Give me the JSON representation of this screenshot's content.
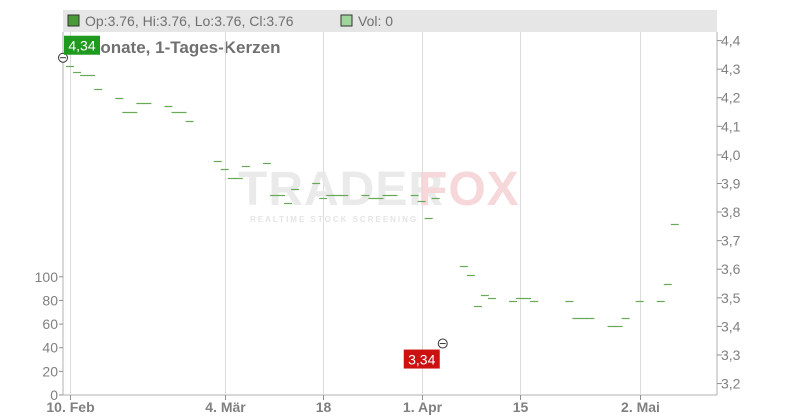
{
  "legend": {
    "ohlc_label": "Op:3.76, Hi:3.76, Lo:3.76, Cl:3.76",
    "vol_label": "Vol: 0"
  },
  "watermark": {
    "brand_a": "TRADER",
    "brand_b": "FOX",
    "tagline": "REALTIME STOCK SCREENING"
  },
  "chart_data": {
    "type": "line",
    "title": "3 Monate, 1-Tages-Kerzen",
    "price_axis": {
      "ticks": [
        "4,4",
        "4,3",
        "4,2",
        "4,1",
        "4,0",
        "3,9",
        "3,8",
        "3,7",
        "3,6",
        "3,5",
        "3,4",
        "3,3",
        "3,2"
      ],
      "range": [
        3.16,
        4.43
      ]
    },
    "volume_axis": {
      "ticks": [
        "100",
        "80",
        "60",
        "40",
        "20",
        "0"
      ],
      "range": [
        0,
        110
      ]
    },
    "x_ticks": [
      "10. Feb",
      "4. Mär",
      "18",
      "1. Apr",
      "15",
      "2. Mai"
    ],
    "x_tick_dates": [
      "2025-02-10",
      "2025-03-04",
      "2025-03-18",
      "2025-04-01",
      "2025-04-15",
      "2025-05-02"
    ],
    "x_range": [
      "2025-02-09",
      "2025-05-13"
    ],
    "series": [
      {
        "values": [
          [
            "2025-02-10",
            4.31
          ],
          [
            "2025-02-11",
            4.29
          ],
          [
            "2025-02-12",
            4.28
          ],
          [
            "2025-02-13",
            4.28
          ],
          [
            "2025-02-14",
            4.23
          ],
          [
            "2025-02-17",
            4.2
          ],
          [
            "2025-02-18",
            4.15
          ],
          [
            "2025-02-19",
            4.15
          ],
          [
            "2025-02-20",
            4.18
          ],
          [
            "2025-02-21",
            4.18
          ],
          [
            "2025-02-24",
            4.17
          ],
          [
            "2025-02-25",
            4.15
          ],
          [
            "2025-02-26",
            4.15
          ],
          [
            "2025-02-27",
            4.12
          ],
          [
            "2025-03-03",
            3.98
          ],
          [
            "2025-03-04",
            3.95
          ],
          [
            "2025-03-05",
            3.92
          ],
          [
            "2025-03-06",
            3.92
          ],
          [
            "2025-03-07",
            3.96
          ],
          [
            "2025-03-10",
            3.97
          ],
          [
            "2025-03-11",
            3.86
          ],
          [
            "2025-03-12",
            3.86
          ],
          [
            "2025-03-13",
            3.83
          ],
          [
            "2025-03-14",
            3.88
          ],
          [
            "2025-03-17",
            3.9
          ],
          [
            "2025-03-18",
            3.85
          ],
          [
            "2025-03-19",
            3.86
          ],
          [
            "2025-03-20",
            3.86
          ],
          [
            "2025-03-21",
            3.86
          ],
          [
            "2025-03-24",
            3.86
          ],
          [
            "2025-03-25",
            3.85
          ],
          [
            "2025-03-26",
            3.85
          ],
          [
            "2025-03-27",
            3.86
          ],
          [
            "2025-03-28",
            3.86
          ],
          [
            "2025-03-31",
            3.86
          ],
          [
            "2025-04-01",
            3.84
          ],
          [
            "2025-04-02",
            3.78
          ],
          [
            "2025-04-03",
            3.85
          ],
          [
            "2025-04-07",
            3.61
          ],
          [
            "2025-04-08",
            3.58
          ],
          [
            "2025-04-09",
            3.47
          ],
          [
            "2025-04-10",
            3.51
          ],
          [
            "2025-04-11",
            3.5
          ],
          [
            "2025-04-14",
            3.49
          ],
          [
            "2025-04-15",
            3.5
          ],
          [
            "2025-04-16",
            3.5
          ],
          [
            "2025-04-17",
            3.49
          ],
          [
            "2025-04-22",
            3.49
          ],
          [
            "2025-04-23",
            3.43
          ],
          [
            "2025-04-24",
            3.43
          ],
          [
            "2025-04-25",
            3.43
          ],
          [
            "2025-04-28",
            3.4
          ],
          [
            "2025-04-29",
            3.4
          ],
          [
            "2025-04-30",
            3.43
          ],
          [
            "2025-05-02",
            3.49
          ],
          [
            "2025-05-05",
            3.49
          ],
          [
            "2025-05-06",
            3.55
          ],
          [
            "2025-05-07",
            3.76
          ]
        ]
      }
    ],
    "annotations": [
      {
        "label": "4,34",
        "date": "2025-02-09",
        "value": 4.34,
        "kind": "high"
      },
      {
        "label": "3,34",
        "date": "2025-04-04",
        "value": 3.34,
        "kind": "low"
      }
    ],
    "colors": {
      "candle": "#66aa55",
      "high_flag": "#1e9a1e",
      "low_flag": "#cc1111",
      "legend_bg": "#e6e6e6"
    },
    "grid": true
  }
}
